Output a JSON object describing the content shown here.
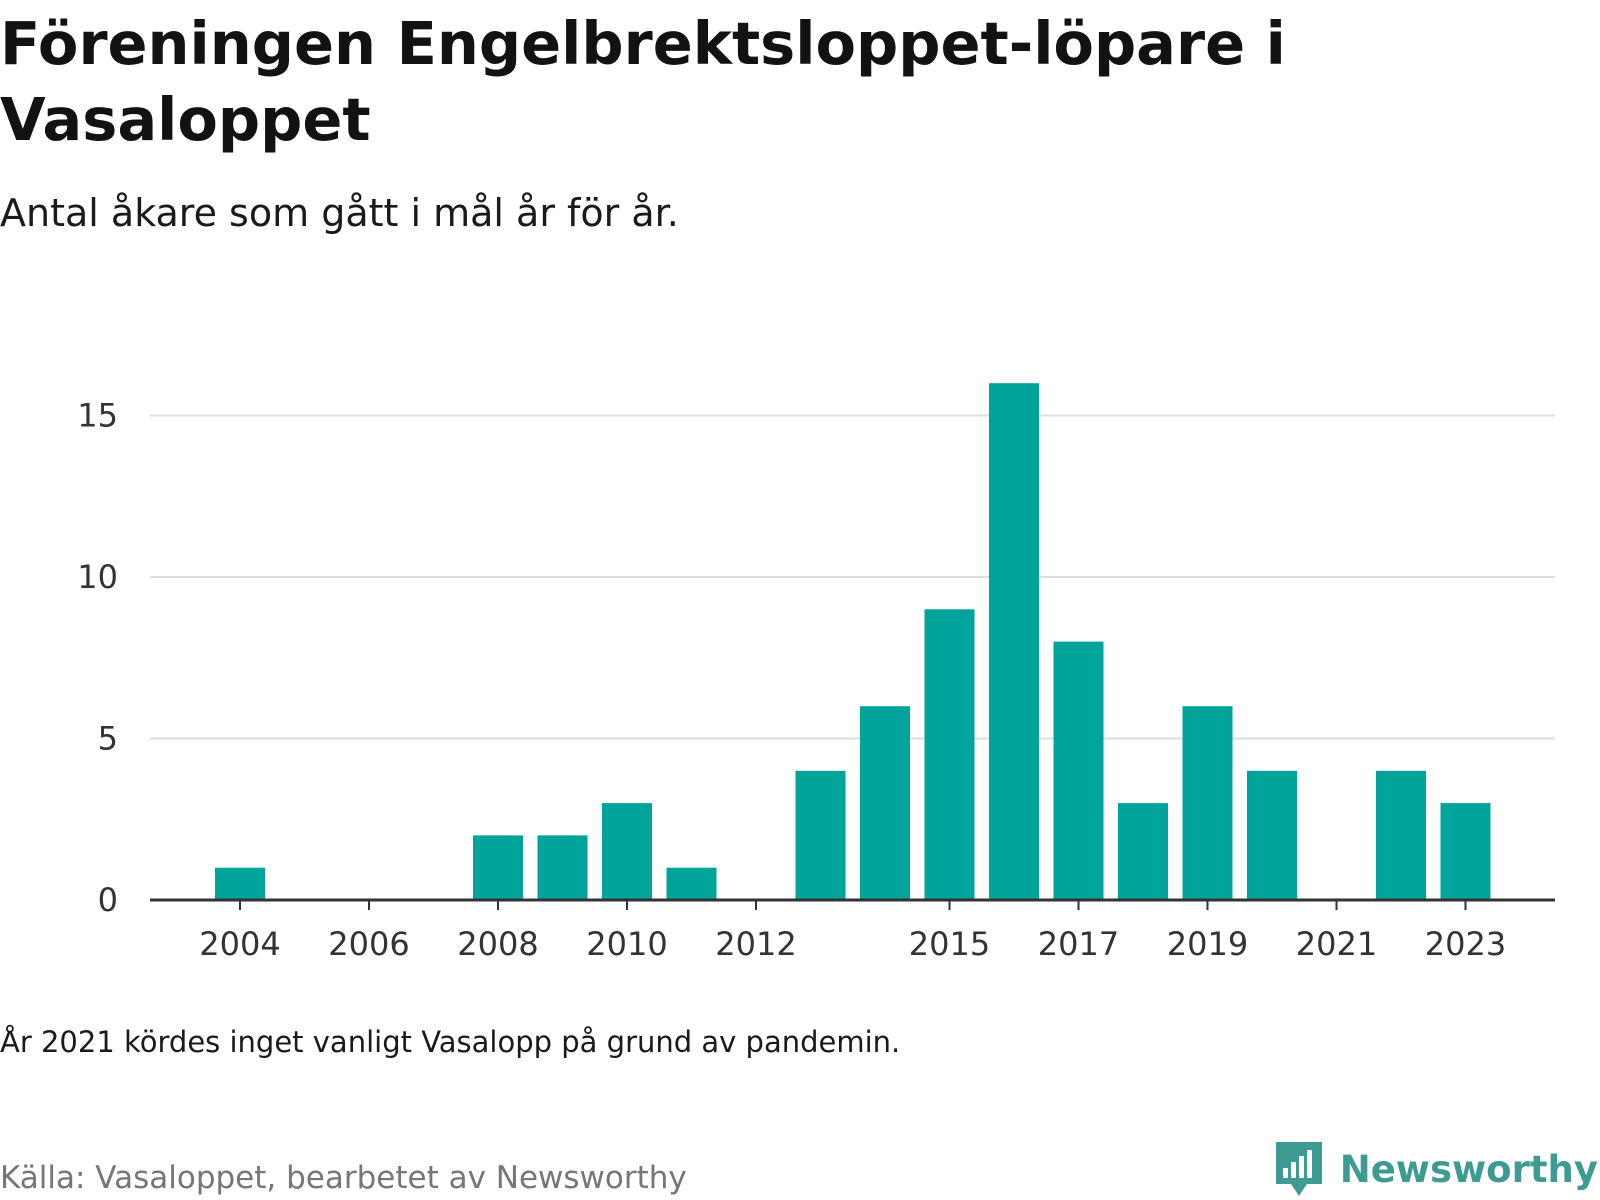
{
  "header": {
    "title": "Föreningen Engelbrektsloppet-löpare i Vasaloppet",
    "subtitle": "Antal åkare som gått i mål år för år."
  },
  "chart_data": {
    "type": "bar",
    "title": "Föreningen Engelbrektsloppet-löpare i Vasaloppet",
    "subtitle": "Antal åkare som gått i mål år för år.",
    "categories": [
      "2004",
      "2005",
      "2006",
      "2007",
      "2008",
      "2009",
      "2010",
      "2011",
      "2012",
      "2013",
      "2014",
      "2015",
      "2016",
      "2017",
      "2018",
      "2019",
      "2020",
      "2021",
      "2022",
      "2023"
    ],
    "values": [
      1,
      0,
      0,
      0,
      2,
      2,
      3,
      1,
      0,
      4,
      6,
      9,
      16,
      8,
      3,
      6,
      4,
      0,
      4,
      3
    ],
    "x_tick_labels": [
      "2004",
      "2006",
      "2008",
      "2010",
      "2012",
      "2015",
      "2017",
      "2019",
      "2021",
      "2023"
    ],
    "y_ticks": [
      0,
      5,
      10,
      15
    ],
    "ylim": [
      0,
      17
    ],
    "xlabel": "",
    "ylabel": "",
    "grid": true,
    "colors": {
      "bar": "#00a49a",
      "grid": "#dddddd",
      "axis": "#333333"
    }
  },
  "footer": {
    "note": "År 2021 kördes inget vanligt Vasalopp på grund av pandemin.",
    "source": "Källa: Vasaloppet, bearbetet av Newsworthy",
    "brand": "Newsworthy"
  }
}
